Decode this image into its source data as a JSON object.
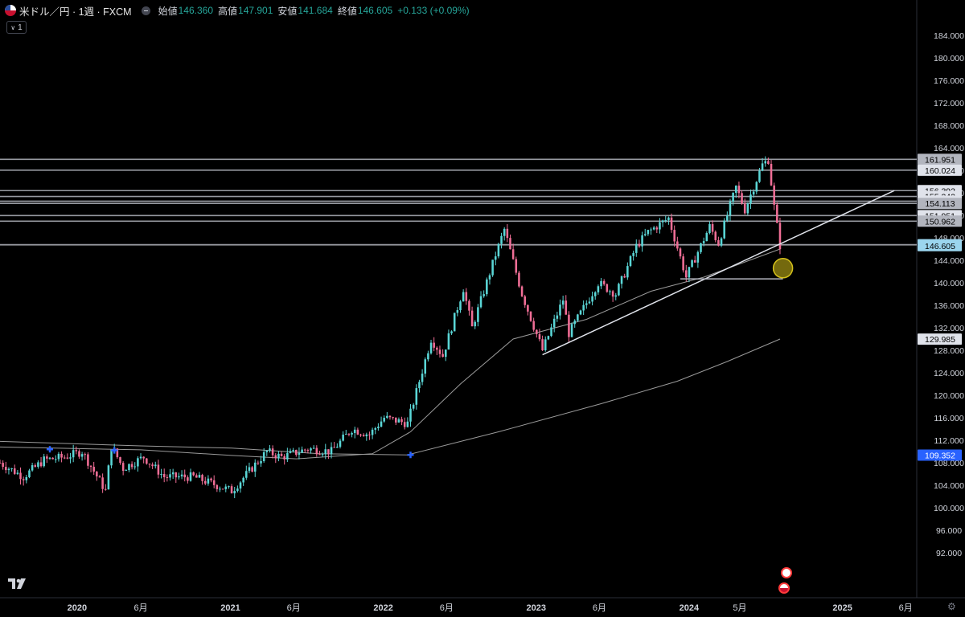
{
  "header": {
    "symbol": "米ドル／円 · 1週 · FXCM",
    "open_label": "始値",
    "open": "146.360",
    "high_label": "高値",
    "high": "147.901",
    "low_label": "安値",
    "low": "141.684",
    "close_label": "終値",
    "close": "146.605",
    "change": "+0.133 (+0.09%)"
  },
  "legend_toggle": "1",
  "colors": {
    "up": "#5ad6d6",
    "down": "#f06e96",
    "level": "#b2b5be",
    "last": "#9bd5ee",
    "blue": "#2962ff",
    "marker": "#d4c01a"
  },
  "chart_data": {
    "type": "candlestick",
    "timeframe": "1週",
    "ylim": [
      88,
      186
    ],
    "y_ticks": [
      "184.000",
      "180.000",
      "176.000",
      "172.000",
      "168.000",
      "164.000",
      "160.000",
      "156.000",
      "152.000",
      "148.000",
      "144.000",
      "140.000",
      "136.000",
      "132.000",
      "128.000",
      "124.000",
      "120.000",
      "116.000",
      "112.000",
      "108.000",
      "104.000",
      "100.000",
      "96.000",
      "92.000"
    ],
    "x_ticks": [
      {
        "label": "2020",
        "date": "2020-01-01"
      },
      {
        "label": "6月",
        "date": "2020-06-01"
      },
      {
        "label": "2021",
        "date": "2021-01-01"
      },
      {
        "label": "6月",
        "date": "2021-06-01"
      },
      {
        "label": "2022",
        "date": "2022-01-01"
      },
      {
        "label": "6月",
        "date": "2022-06-01"
      },
      {
        "label": "2023",
        "date": "2023-01-01"
      },
      {
        "label": "6月",
        "date": "2023-06-01"
      },
      {
        "label": "2024",
        "date": "2024-01-01"
      },
      {
        "label": "5月",
        "date": "2024-05-01"
      },
      {
        "label": "2025",
        "date": "2025-01-01"
      },
      {
        "label": "6月",
        "date": "2025-06-01"
      }
    ],
    "price_path": [
      [
        "2019-07-01",
        108.0
      ],
      [
        "2019-08-26",
        105.5
      ],
      [
        "2019-10-14",
        108.5
      ],
      [
        "2019-12-02",
        109.0
      ],
      [
        "2020-01-13",
        110.0
      ],
      [
        "2020-03-09",
        103.0
      ],
      [
        "2020-03-23",
        111.0
      ],
      [
        "2020-04-20",
        107.0
      ],
      [
        "2020-06-08",
        109.0
      ],
      [
        "2020-07-27",
        105.5
      ],
      [
        "2020-10-05",
        105.5
      ],
      [
        "2021-01-04",
        103.0
      ],
      [
        "2021-03-29",
        110.0
      ],
      [
        "2021-05-03",
        109.0
      ],
      [
        "2021-07-05",
        110.5
      ],
      [
        "2021-08-30",
        110.0
      ],
      [
        "2021-10-18",
        114.0
      ],
      [
        "2021-11-29",
        113.0
      ],
      [
        "2022-01-03",
        116.0
      ],
      [
        "2022-02-28",
        115.0
      ],
      [
        "2022-04-25",
        130.0
      ],
      [
        "2022-05-23",
        127.0
      ],
      [
        "2022-07-11",
        139.0
      ],
      [
        "2022-08-01",
        132.0
      ],
      [
        "2022-09-26",
        145.0
      ],
      [
        "2022-10-17",
        149.5
      ],
      [
        "2022-11-28",
        138.0
      ],
      [
        "2023-01-16",
        128.0
      ],
      [
        "2023-03-06",
        137.0
      ],
      [
        "2023-03-20",
        131.0
      ],
      [
        "2023-05-29",
        140.0
      ],
      [
        "2023-07-10",
        138.0
      ],
      [
        "2023-08-28",
        146.5
      ],
      [
        "2023-09-25",
        149.0
      ],
      [
        "2023-11-13",
        151.5
      ],
      [
        "2023-12-25",
        141.0
      ],
      [
        "2024-02-19",
        150.0
      ],
      [
        "2024-03-11",
        147.0
      ],
      [
        "2024-04-22",
        157.0
      ],
      [
        "2024-05-13",
        153.0
      ],
      [
        "2024-06-24",
        161.0
      ],
      [
        "2024-07-08",
        161.9
      ],
      [
        "2024-07-22",
        153.5
      ],
      [
        "2024-08-05",
        146.6
      ]
    ],
    "horizontal_levels": [
      {
        "label": "161.951",
        "value": 161.951
      },
      {
        "label": "160.024",
        "value": 160.024
      },
      {
        "label": "156.392",
        "value": 156.392
      },
      {
        "label": "155.342",
        "value": 155.342
      },
      {
        "label": "154.511",
        "value": 154.511
      },
      {
        "label": "154.113",
        "value": 154.113
      },
      {
        "label": "151.951",
        "value": 151.951
      },
      {
        "label": "150.962",
        "value": 150.962
      },
      {
        "label": "146.774",
        "value": 146.774
      },
      {
        "label": "146.605",
        "value": 146.605
      },
      {
        "label": "129.985",
        "value": 129.985
      },
      {
        "label": "109.352",
        "value": 109.352
      }
    ],
    "trendline": [
      [
        "2023-01-16",
        127.2
      ],
      [
        "2025-05-05",
        156.4
      ]
    ],
    "support_line": [
      [
        "2023-12-11",
        140.7
      ],
      [
        "2024-08-12",
        140.7
      ]
    ],
    "moving_averages": [
      {
        "points": [
          [
            "2019-07-01",
            110.8
          ],
          [
            "2020-06-01",
            110.3
          ],
          [
            "2021-01-04",
            109.3
          ],
          [
            "2021-06-07",
            108.7
          ],
          [
            "2021-12-06",
            109.6
          ],
          [
            "2022-03-07",
            113.5
          ],
          [
            "2022-07-04",
            122.0
          ],
          [
            "2022-11-07",
            130.0
          ],
          [
            "2023-05-01",
            133.5
          ],
          [
            "2023-10-02",
            138.5
          ],
          [
            "2024-02-05",
            141.0
          ],
          [
            "2024-05-06",
            143.5
          ],
          [
            "2024-08-05",
            146.0
          ]
        ]
      },
      {
        "points": [
          [
            "2019-07-01",
            111.8
          ],
          [
            "2020-06-01",
            111.0
          ],
          [
            "2021-01-04",
            110.6
          ],
          [
            "2021-08-02",
            109.6
          ],
          [
            "2022-02-28",
            109.4
          ],
          [
            "2022-10-03",
            113.5
          ],
          [
            "2023-06-05",
            118.5
          ],
          [
            "2023-12-04",
            122.5
          ],
          [
            "2024-04-01",
            126.0
          ],
          [
            "2024-08-05",
            130.0
          ]
        ]
      }
    ],
    "cross_markers": [
      [
        "2019-10-28",
        110.4
      ],
      [
        "2020-03-30",
        110.2
      ],
      [
        "2022-03-07",
        109.4
      ]
    ],
    "last_price": 146.605
  }
}
